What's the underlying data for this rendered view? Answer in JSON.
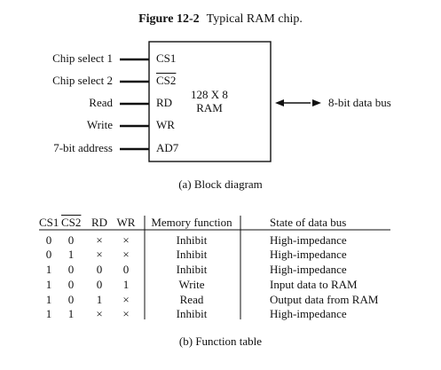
{
  "figure": {
    "number": "Figure 12-2",
    "title": "Typical RAM chip."
  },
  "block": {
    "inputs": [
      {
        "label": "Chip select 1",
        "pin": "CS1",
        "active_low": false
      },
      {
        "label": "Chip select 2",
        "pin": "CS2",
        "active_low": true
      },
      {
        "label": "Read",
        "pin": "RD",
        "active_low": false
      },
      {
        "label": "Write",
        "pin": "WR",
        "active_low": false
      },
      {
        "label": "7-bit address",
        "pin": "AD7",
        "active_low": false
      }
    ],
    "chip_line1": "128 X 8",
    "chip_line2": "RAM",
    "bus_label": "8-bit data bus",
    "caption": "(a)  Block diagram"
  },
  "table": {
    "headers": {
      "cs1": "CS1",
      "cs2": "CS2",
      "rd": "RD",
      "wr": "WR",
      "memory_function": "Memory function",
      "data_bus": "State of data bus"
    },
    "rows": [
      {
        "cs1": "0",
        "cs2": "0",
        "rd": "×",
        "wr": "×",
        "mf": "Inhibit",
        "db": "High-impedance"
      },
      {
        "cs1": "0",
        "cs2": "1",
        "rd": "×",
        "wr": "×",
        "mf": "Inhibit",
        "db": "High-impedance"
      },
      {
        "cs1": "1",
        "cs2": "0",
        "rd": "0",
        "wr": "0",
        "mf": "Inhibit",
        "db": "High-impedance"
      },
      {
        "cs1": "1",
        "cs2": "0",
        "rd": "0",
        "wr": "1",
        "mf": "Write",
        "db": "Input data to RAM"
      },
      {
        "cs1": "1",
        "cs2": "0",
        "rd": "1",
        "wr": "×",
        "mf": "Read",
        "db": "Output data from RAM"
      },
      {
        "cs1": "1",
        "cs2": "1",
        "rd": "×",
        "wr": "×",
        "mf": "Inhibit",
        "db": "High-impedance"
      }
    ],
    "caption": "(b)  Function table"
  }
}
